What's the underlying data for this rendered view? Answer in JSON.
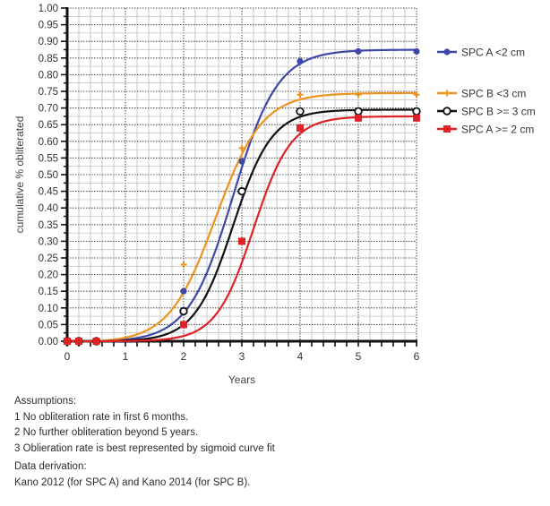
{
  "chart_data": {
    "type": "line",
    "title": "",
    "xlabel": "Years",
    "ylabel": "cumulative % obliterated",
    "xlim": [
      0,
      6
    ],
    "ylim": [
      0,
      1.0
    ],
    "x_ticks": [
      "0",
      "1",
      "2",
      "3",
      "4",
      "5",
      "6"
    ],
    "y_ticks": [
      "0.00",
      "0.05",
      "0.10",
      "0.15",
      "0.20",
      "0.25",
      "0.30",
      "0.35",
      "0.40",
      "0.45",
      "0.50",
      "0.55",
      "0.60",
      "0.65",
      "0.70",
      "0.75",
      "0.80",
      "0.85",
      "0.90",
      "0.95",
      "1.00"
    ],
    "grid": true,
    "legend_position": "right",
    "series": [
      {
        "name": "SPC A <2 cm",
        "color": "#3f48a8",
        "marker": "circle-filled",
        "points": [
          [
            0,
            0
          ],
          [
            0.2,
            0
          ],
          [
            0.5,
            0
          ],
          [
            2,
            0.15
          ],
          [
            3,
            0.54
          ],
          [
            4,
            0.84
          ],
          [
            5,
            0.87
          ],
          [
            6,
            0.87
          ]
        ],
        "fit": {
          "L": 0.875,
          "k": 2.6,
          "x0": 2.85
        }
      },
      {
        "name": "SPC B <3 cm",
        "color": "#f0921e",
        "marker": "plus",
        "points": [
          [
            0,
            0
          ],
          [
            0.2,
            0
          ],
          [
            0.5,
            0
          ],
          [
            2,
            0.23
          ],
          [
            3,
            0.58
          ],
          [
            4,
            0.74
          ],
          [
            5,
            0.74
          ],
          [
            6,
            0.74
          ]
        ],
        "fit": {
          "L": 0.745,
          "k": 2.5,
          "x0": 2.55
        }
      },
      {
        "name": "SPC B >= 3 cm",
        "color": "#111111",
        "marker": "circle-open",
        "points": [
          [
            0,
            0
          ],
          [
            0.2,
            0
          ],
          [
            0.5,
            0
          ],
          [
            2,
            0.09
          ],
          [
            3,
            0.45
          ],
          [
            4,
            0.69
          ],
          [
            5,
            0.69
          ],
          [
            6,
            0.69
          ]
        ],
        "fit": {
          "L": 0.695,
          "k": 3.0,
          "x0": 2.85
        }
      },
      {
        "name": "SPC A >= 2 cm",
        "color": "#e02227",
        "marker": "square",
        "points": [
          [
            0,
            0
          ],
          [
            0.2,
            0
          ],
          [
            0.5,
            0
          ],
          [
            2,
            0.05
          ],
          [
            3,
            0.3
          ],
          [
            4,
            0.64
          ],
          [
            5,
            0.67
          ],
          [
            6,
            0.67
          ]
        ],
        "fit": {
          "L": 0.675,
          "k": 3.1,
          "x0": 3.2
        }
      }
    ]
  },
  "notes": {
    "assumptions_heading": "Assumptions:",
    "assumptions": [
      "1 No obliteration rate in first 6 months.",
      "2 No further obliteration beyond 5 years.",
      "3 Oblieration rate is best represented by sigmoid curve fit"
    ],
    "derivation_heading": "Data derivation:",
    "derivation_text": "Kano 2012 (for SPC A) and Kano 2014 (for SPC B)."
  }
}
